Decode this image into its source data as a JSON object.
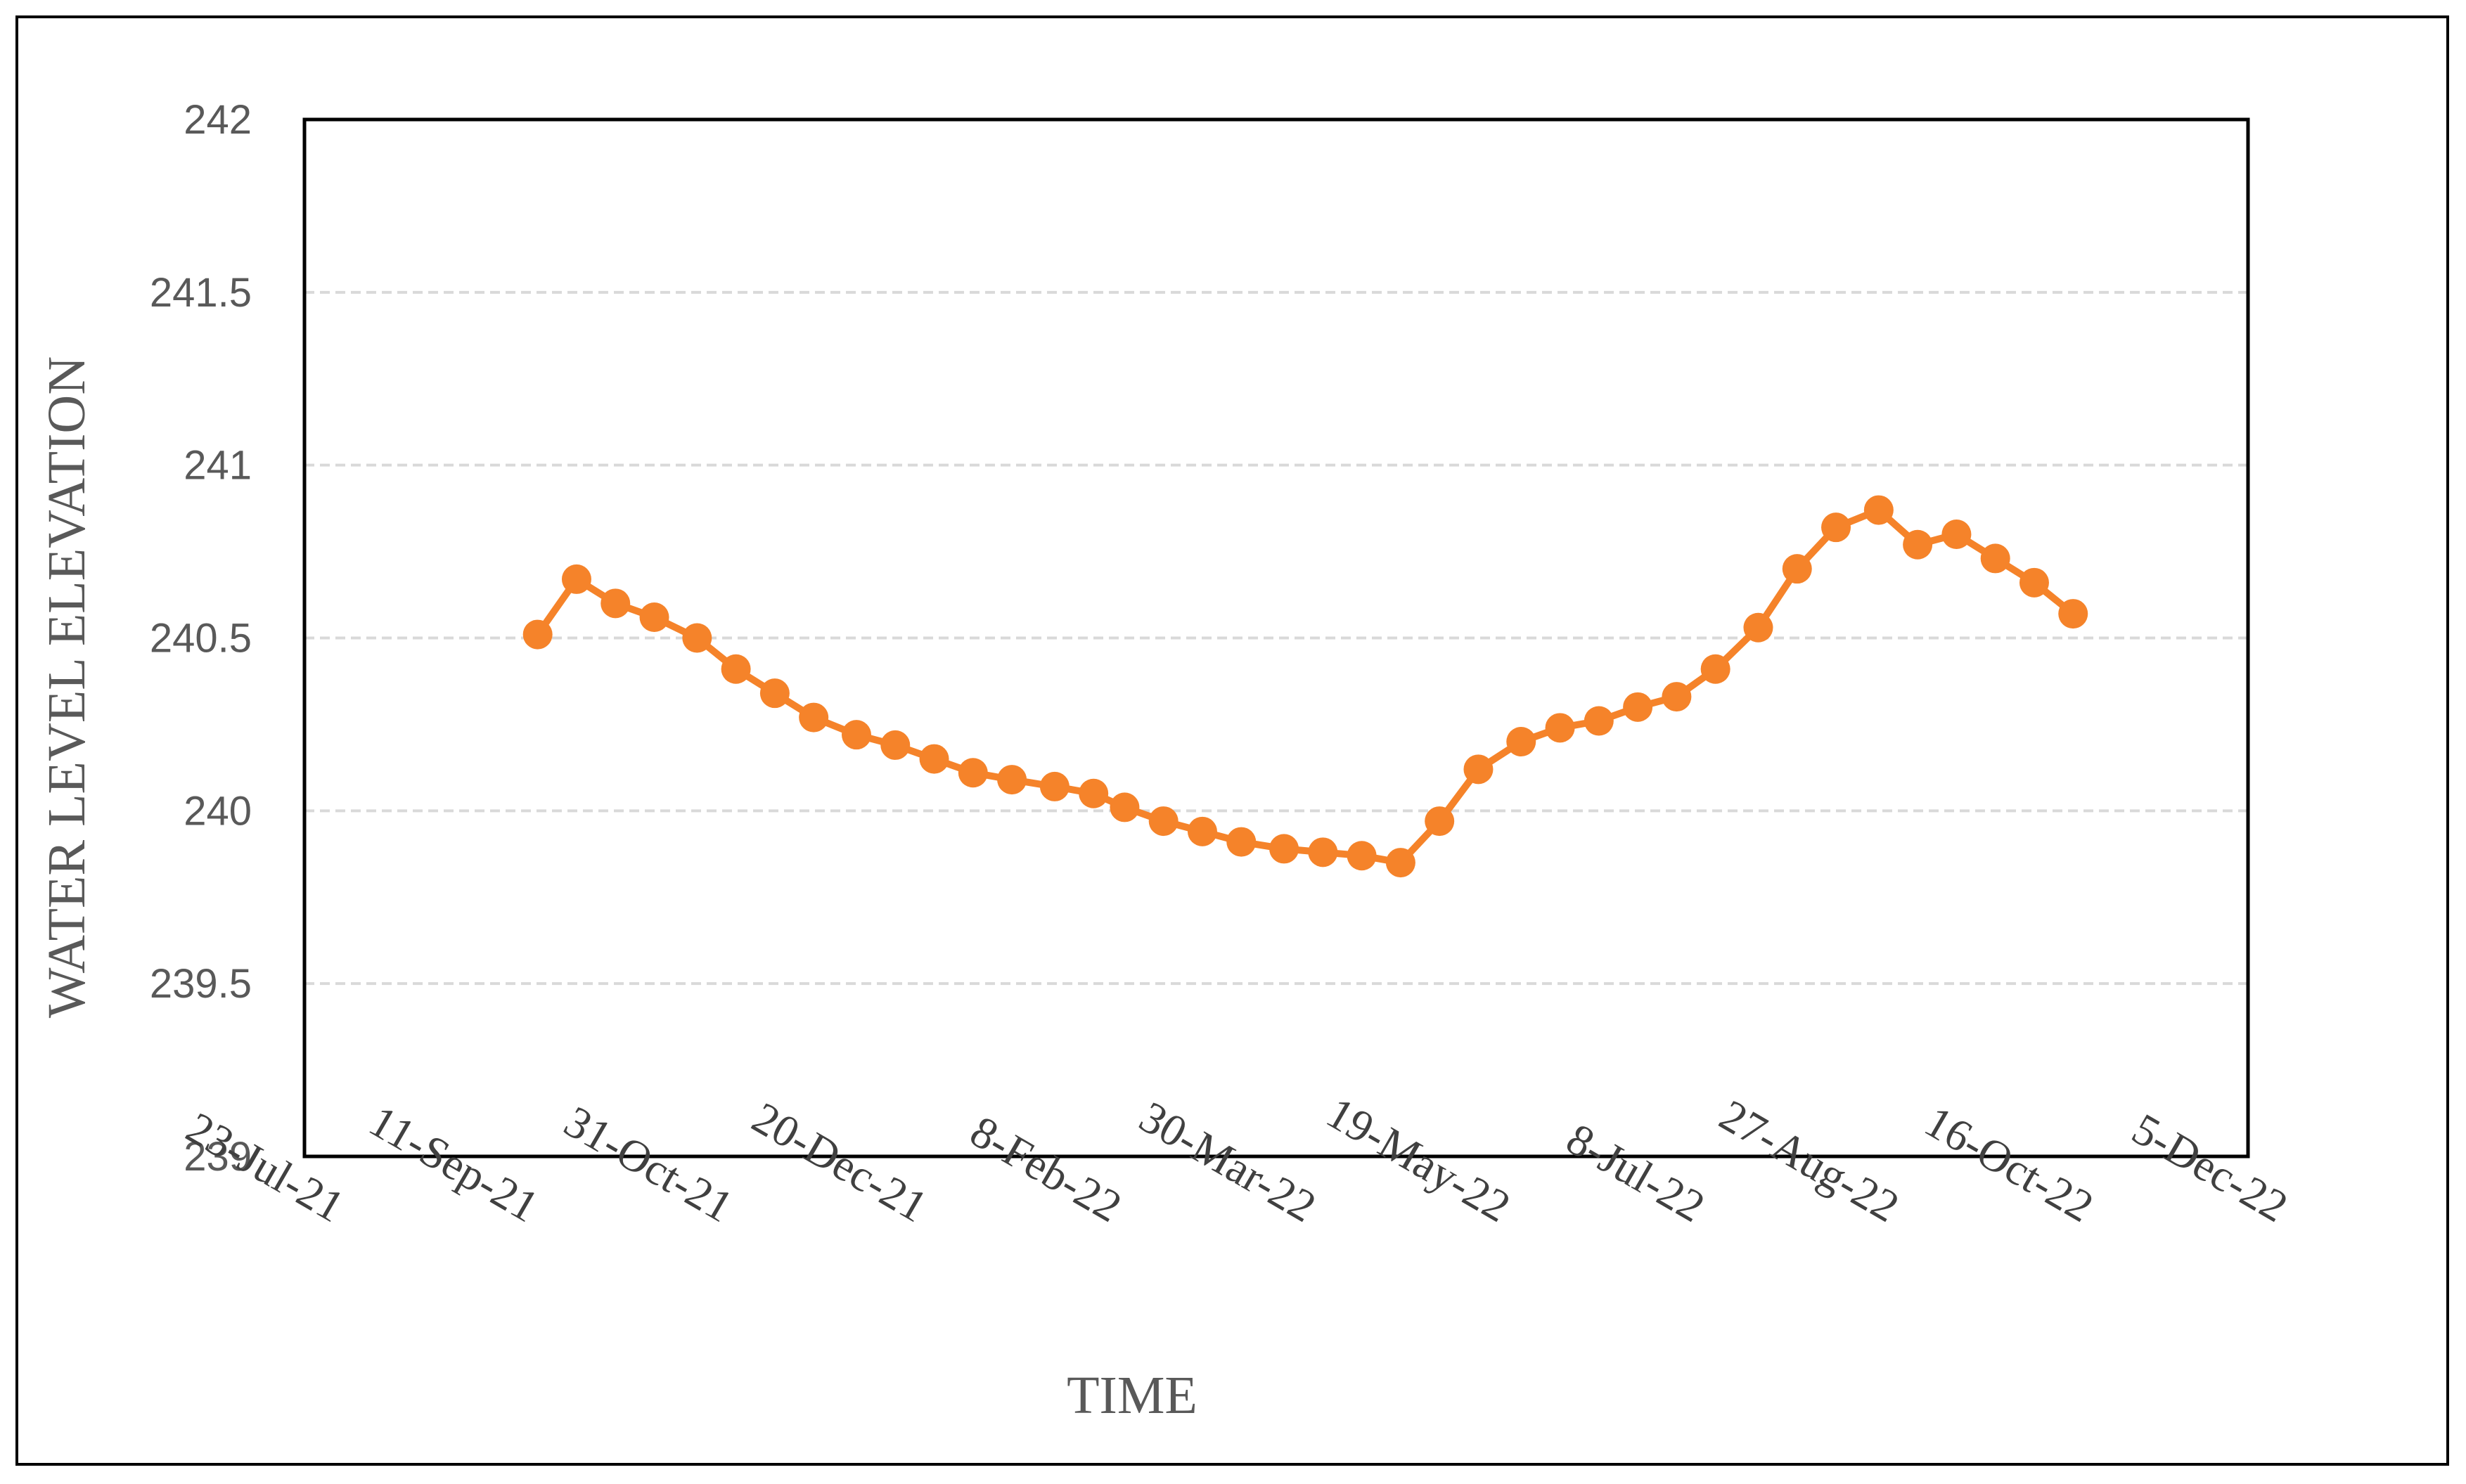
{
  "chart_data": {
    "type": "line",
    "title": "",
    "xlabel": "TIME",
    "ylabel": "WATER LEVEL ELEVATION",
    "ylim": [
      239,
      242
    ],
    "xlim": [
      "2021-07-23",
      "2022-12-05"
    ],
    "y_ticks": [
      "239",
      "239.5",
      "240",
      "240.5",
      "241",
      "241.5",
      "242"
    ],
    "x_ticks": [
      {
        "date": "2021-07-23",
        "label": "23-Jul-21"
      },
      {
        "date": "2021-09-11",
        "label": "11-Sep-21"
      },
      {
        "date": "2021-10-31",
        "label": "31-Oct-21"
      },
      {
        "date": "2021-12-20",
        "label": "20-Dec-21"
      },
      {
        "date": "2022-02-08",
        "label": "8-Feb-22"
      },
      {
        "date": "2022-03-30",
        "label": "30-Mar-22"
      },
      {
        "date": "2022-05-19",
        "label": "19-May-22"
      },
      {
        "date": "2022-07-08",
        "label": "8-Jul-22"
      },
      {
        "date": "2022-08-27",
        "label": "27-Aug-22"
      },
      {
        "date": "2022-10-16",
        "label": "16-Oct-22"
      },
      {
        "date": "2022-12-05",
        "label": "5-Dec-22"
      }
    ],
    "grid": true,
    "color": "#F5832A",
    "series": [
      {
        "points": [
          {
            "x": "2021-09-21",
            "y": 240.51
          },
          {
            "x": "2021-10-01",
            "y": 240.67
          },
          {
            "x": "2021-10-11",
            "y": 240.6
          },
          {
            "x": "2021-10-21",
            "y": 240.56
          },
          {
            "x": "2021-11-01",
            "y": 240.5
          },
          {
            "x": "2021-11-11",
            "y": 240.41
          },
          {
            "x": "2021-11-21",
            "y": 240.34
          },
          {
            "x": "2021-12-01",
            "y": 240.27
          },
          {
            "x": "2021-12-12",
            "y": 240.22
          },
          {
            "x": "2021-12-22",
            "y": 240.19
          },
          {
            "x": "2022-01-01",
            "y": 240.15
          },
          {
            "x": "2022-01-11",
            "y": 240.11
          },
          {
            "x": "2022-01-21",
            "y": 240.09
          },
          {
            "x": "2022-02-01",
            "y": 240.07
          },
          {
            "x": "2022-02-11",
            "y": 240.05
          },
          {
            "x": "2022-02-19",
            "y": 240.01
          },
          {
            "x": "2022-03-01",
            "y": 239.97
          },
          {
            "x": "2022-03-11",
            "y": 239.94
          },
          {
            "x": "2022-03-21",
            "y": 239.91
          },
          {
            "x": "2022-04-01",
            "y": 239.89
          },
          {
            "x": "2022-04-11",
            "y": 239.88
          },
          {
            "x": "2022-04-21",
            "y": 239.87
          },
          {
            "x": "2022-05-01",
            "y": 239.85
          },
          {
            "x": "2022-05-11",
            "y": 239.97
          },
          {
            "x": "2022-05-21",
            "y": 240.12
          },
          {
            "x": "2022-06-01",
            "y": 240.2
          },
          {
            "x": "2022-06-11",
            "y": 240.24
          },
          {
            "x": "2022-06-21",
            "y": 240.26
          },
          {
            "x": "2022-07-01",
            "y": 240.3
          },
          {
            "x": "2022-07-11",
            "y": 240.33
          },
          {
            "x": "2022-07-21",
            "y": 240.41
          },
          {
            "x": "2022-08-01",
            "y": 240.53
          },
          {
            "x": "2022-08-11",
            "y": 240.7
          },
          {
            "x": "2022-08-21",
            "y": 240.82
          },
          {
            "x": "2022-09-01",
            "y": 240.87
          },
          {
            "x": "2022-09-11",
            "y": 240.77
          },
          {
            "x": "2022-09-21",
            "y": 240.8
          },
          {
            "x": "2022-10-01",
            "y": 240.73
          },
          {
            "x": "2022-10-11",
            "y": 240.66
          },
          {
            "x": "2022-10-21",
            "y": 240.57
          }
        ]
      }
    ]
  }
}
